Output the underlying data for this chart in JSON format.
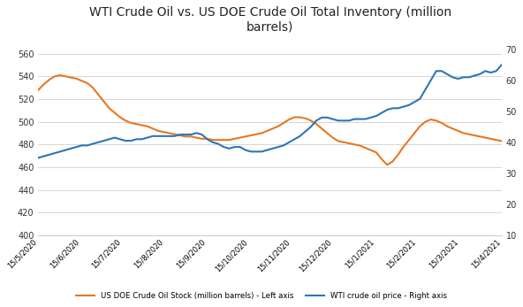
{
  "title": "WTI Crude Oil vs. US DOE Crude Oil Total Inventory (million\nbarrels)",
  "left_label": "US DOE Crude Oil Stock (million barrels) - Left axis",
  "right_label": "WTI crude oil price - Right axis",
  "left_color": "#E87722",
  "right_color": "#2E75B6",
  "left_ylim": [
    400,
    572
  ],
  "right_ylim": [
    10,
    73
  ],
  "left_yticks": [
    400,
    420,
    440,
    460,
    480,
    500,
    520,
    540,
    560
  ],
  "right_yticks": [
    10,
    20,
    30,
    40,
    50,
    60,
    70
  ],
  "x_labels": [
    "15/5/2020",
    "15/6/2020",
    "15/7/2020",
    "15/8/2020",
    "15/9/2020",
    "15/10/2020",
    "15/11/2020",
    "15/12/2020",
    "15/1/2021",
    "15/2/2021",
    "15/3/2021",
    "15/4/2021"
  ],
  "inventory": [
    528,
    533,
    537,
    540,
    541,
    540,
    539,
    538,
    536,
    534,
    530,
    524,
    518,
    512,
    508,
    504,
    501,
    499,
    498,
    497,
    496,
    494,
    492,
    491,
    490,
    489,
    488,
    487,
    487,
    486,
    485,
    485,
    484,
    484,
    484,
    484,
    485,
    486,
    487,
    488,
    489,
    490,
    492,
    494,
    496,
    499,
    502,
    504,
    504,
    503,
    501,
    498,
    494,
    490,
    486,
    483,
    482,
    481,
    480,
    479,
    477,
    475,
    473,
    467,
    462,
    465,
    471,
    478,
    484,
    490,
    496,
    500,
    502,
    501,
    499,
    496,
    494,
    492,
    490,
    489,
    488,
    487,
    486,
    485,
    484,
    483
  ],
  "wti": [
    35,
    35.5,
    36,
    36.5,
    37,
    37.5,
    38,
    38.5,
    39,
    39,
    39.5,
    40,
    40.5,
    41,
    41.5,
    41,
    40.5,
    40.5,
    41,
    41,
    41.5,
    42,
    42,
    42,
    42,
    42,
    42.5,
    42.5,
    42.5,
    43,
    42.5,
    41,
    40,
    39.5,
    38.5,
    38,
    38.5,
    38.5,
    37.5,
    37,
    37,
    37,
    37.5,
    38,
    38.5,
    39,
    40,
    41,
    42,
    43.5,
    45,
    47,
    48,
    48,
    47.5,
    47,
    47,
    47,
    47.5,
    47.5,
    47.5,
    48,
    48.5,
    49.5,
    50.5,
    51,
    51,
    51.5,
    52,
    53,
    54,
    57,
    60,
    63,
    63,
    62,
    61,
    60.5,
    61,
    61,
    61.5,
    62,
    63,
    62.5,
    63,
    65
  ],
  "bg_color": "#FFFFFF",
  "grid_color": "#D0D0D0",
  "spine_color": "#D0D0D0"
}
